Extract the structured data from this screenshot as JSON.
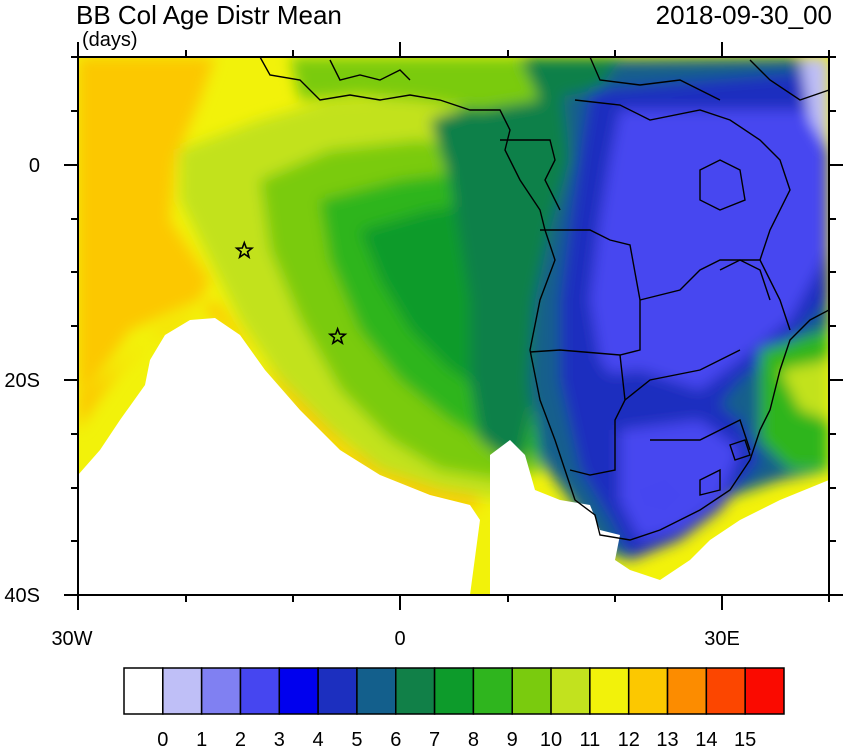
{
  "header": {
    "title": "BB Col Age Distr Mean",
    "units": "(days)",
    "datetime": "2018-09-30_00"
  },
  "axes": {
    "lat_labels": [
      "0",
      "20S",
      "40S"
    ],
    "lon_labels": [
      "30W",
      "0",
      "30E"
    ]
  },
  "colorbar": {
    "labels": [
      "0",
      "1",
      "2",
      "3",
      "4",
      "5",
      "6",
      "7",
      "8",
      "9",
      "10",
      "11",
      "12",
      "13",
      "14",
      "15"
    ],
    "colors": [
      "#ffffff",
      "#bfbff7",
      "#8080f2",
      "#4646f0",
      "#0000ee",
      "#1c2fbf",
      "#135f8c",
      "#118048",
      "#0d9b2b",
      "#2fb51e",
      "#7acb0e",
      "#c2e21e",
      "#f2f20a",
      "#fcc800",
      "#fc8c00",
      "#fc4600",
      "#fa0a00"
    ]
  },
  "markers": [
    {
      "name": "star-marker-1",
      "lon": -14.5,
      "lat": -8.0
    },
    {
      "name": "star-marker-2",
      "lon": -5.8,
      "lat": -16.0
    }
  ]
}
